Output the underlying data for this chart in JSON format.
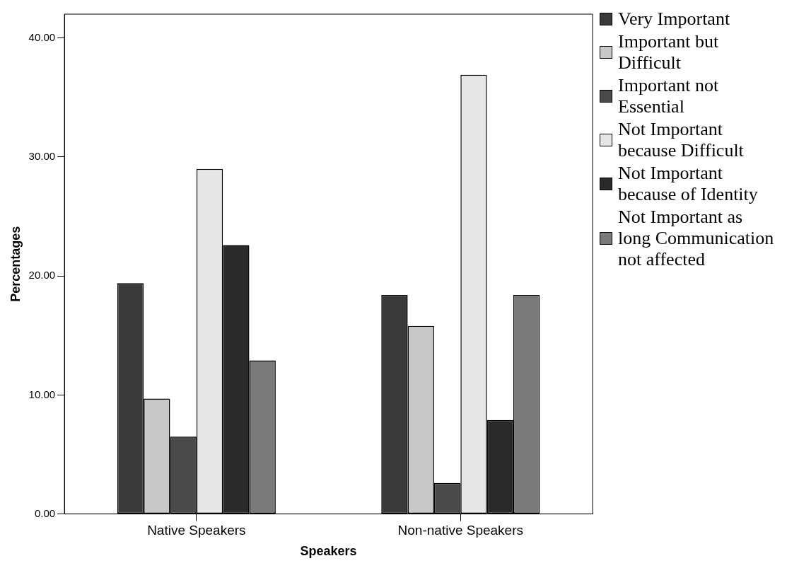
{
  "chart_data": {
    "type": "bar",
    "xlabel": "Speakers",
    "ylabel": "Percentages",
    "categories": [
      "Native Speakers",
      "Non-native Speakers"
    ],
    "series": [
      {
        "name": "Very Important",
        "color": "#3a3a3a",
        "values": [
          19.4,
          18.4
        ]
      },
      {
        "name": "Important but Difficult",
        "color": "#c8c8c8",
        "values": [
          9.7,
          15.8
        ]
      },
      {
        "name": "Important not Essential",
        "color": "#4a4a4a",
        "values": [
          6.5,
          2.6
        ]
      },
      {
        "name": "Not Important because Difficult",
        "color": "#e6e6e6",
        "values": [
          29.0,
          36.9
        ]
      },
      {
        "name": "Not Important because of Identity",
        "color": "#2a2a2a",
        "values": [
          22.6,
          7.9
        ]
      },
      {
        "name": "Not Important as long Communication not affected",
        "color": "#7a7a7a",
        "values": [
          12.9,
          18.4
        ]
      }
    ],
    "ylim": [
      0,
      42
    ],
    "yticks": [
      {
        "value": 0,
        "label": "0.00"
      },
      {
        "value": 10,
        "label": "10.00"
      },
      {
        "value": 20,
        "label": "20.00"
      },
      {
        "value": 30,
        "label": "30.00"
      },
      {
        "value": 40,
        "label": "40.00"
      }
    ],
    "legend": "right"
  }
}
